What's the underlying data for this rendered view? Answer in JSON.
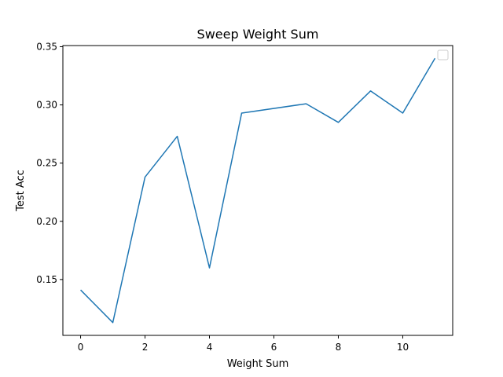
{
  "chart_data": {
    "type": "line",
    "title": "Sweep Weight Sum",
    "xlabel": "Weight Sum",
    "ylabel": "Test Acc",
    "xlim": [
      -0.55,
      11.55
    ],
    "ylim": [
      0.102,
      0.351
    ],
    "xticks": [
      0,
      2,
      4,
      6,
      8,
      10
    ],
    "xtick_labels": [
      "0",
      "2",
      "4",
      "6",
      "8",
      "10"
    ],
    "yticks": [
      0.15,
      0.2,
      0.25,
      0.3,
      0.35
    ],
    "ytick_labels": [
      "0.15",
      "0.20",
      "0.25",
      "0.30",
      "0.35"
    ],
    "grid": false,
    "legend": "top-right",
    "series": [
      {
        "color": "#1f77b4",
        "x": [
          0,
          1,
          2,
          3,
          4,
          5,
          7,
          8,
          9,
          10,
          11
        ],
        "values": [
          0.141,
          0.113,
          0.238,
          0.273,
          0.16,
          0.293,
          0.301,
          0.285,
          0.312,
          0.293,
          0.34
        ]
      }
    ]
  }
}
